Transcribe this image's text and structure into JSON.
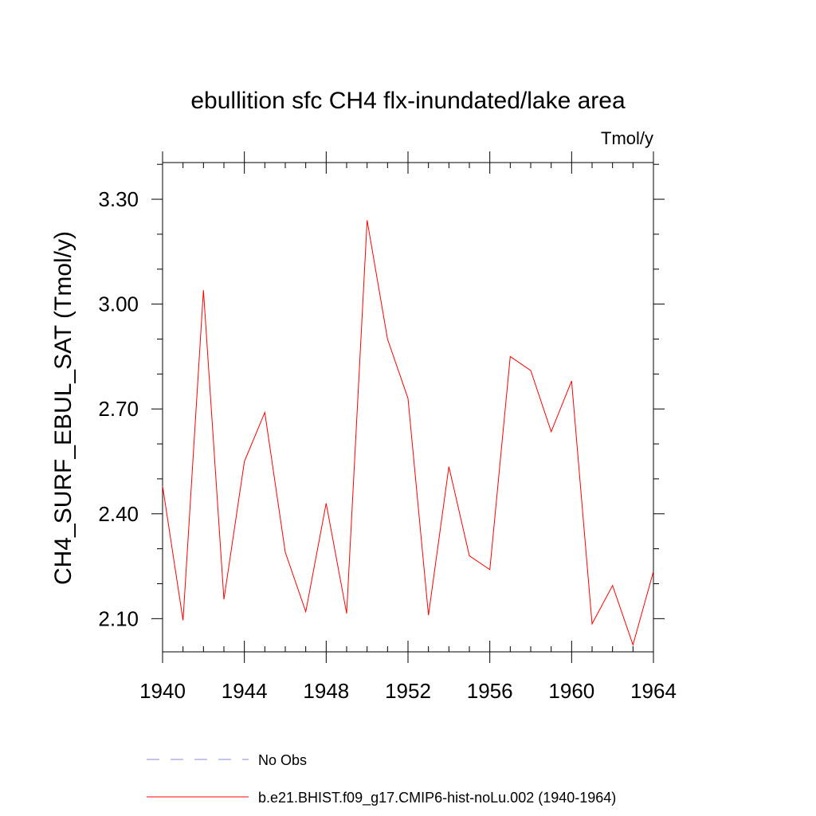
{
  "chart_data": {
    "type": "line",
    "title": "ebullition sfc CH4 flx-inundated/lake area",
    "units_label": "Tmol/y",
    "xlabel": "",
    "ylabel": "CH4_SURF_EBUL_SAT  (Tmol/y)",
    "xlim": [
      1940,
      1964
    ],
    "ylim": [
      2.005,
      3.405
    ],
    "x_ticks": [
      1940,
      1944,
      1948,
      1952,
      1956,
      1960,
      1964
    ],
    "x_tick_labels": [
      "1940",
      "1944",
      "1948",
      "1952",
      "1956",
      "1960",
      "1964"
    ],
    "y_ticks": [
      2.1,
      2.4,
      2.7,
      3.0,
      3.3
    ],
    "y_tick_labels": [
      "2.10",
      "2.40",
      "2.70",
      "3.00",
      "3.30"
    ],
    "grid": false,
    "legend_position": "bottom",
    "series": [
      {
        "name": "No Obs",
        "color": "#8c8cd2",
        "dash": "dashed",
        "x": [],
        "y": []
      },
      {
        "name": "b.e21.BHIST.f09_g17.CMIP6-hist-noLu.002 (1940-1964)",
        "color": "#ff0000",
        "dash": "solid",
        "x": [
          1940,
          1941,
          1942,
          1943,
          1944,
          1945,
          1946,
          1947,
          1948,
          1949,
          1950,
          1951,
          1952,
          1953,
          1954,
          1955,
          1956,
          1957,
          1958,
          1959,
          1960,
          1961,
          1962,
          1963,
          1964
        ],
        "y": [
          2.48,
          2.095,
          3.04,
          2.155,
          2.55,
          2.69,
          2.29,
          2.12,
          2.43,
          2.115,
          3.24,
          2.9,
          2.73,
          2.11,
          2.535,
          2.28,
          2.24,
          2.85,
          2.81,
          2.635,
          2.78,
          2.085,
          2.195,
          2.025,
          2.235
        ]
      }
    ]
  }
}
